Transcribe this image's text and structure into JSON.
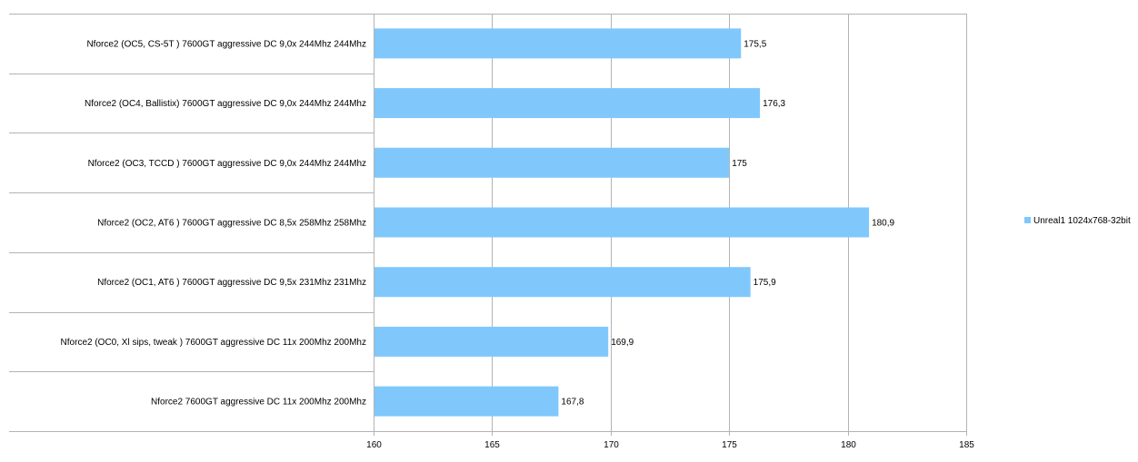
{
  "chart_data": {
    "type": "bar",
    "orientation": "horizontal",
    "categories": [
      "Nforce2 (OC5, CS-5T )  7600GT  aggressive  DC   9,0x  244Mhz  244Mhz",
      "Nforce2 (OC4, Ballistix)  7600GT  aggressive  DC   9,0x  244Mhz  244Mhz",
      "Nforce2 (OC3, TCCD )  7600GT  aggressive  DC   9,0x  244Mhz  244Mhz",
      "Nforce2 (OC2,  AT6 )  7600GT  aggressive  DC   8,5x  258Mhz  258Mhz",
      "Nforce2 (OC1,  AT6 )  7600GT  aggressive  DC   9,5x  231Mhz  231Mhz",
      "Nforce2 (OC0, Xl sips, tweak )  7600GT  aggressive  DC    11x  200Mhz  200Mhz",
      "Nforce2  7600GT  aggressive  DC    11x  200Mhz  200Mhz"
    ],
    "series": [
      {
        "name": "Unreal1 1024x768-32bit",
        "values": [
          175.5,
          176.3,
          175,
          180.9,
          175.9,
          169.9,
          167.8
        ],
        "data_labels": [
          "175,5",
          "176,3",
          "175",
          "180,9",
          "175,9",
          "169,9",
          "167,8"
        ],
        "color": "#80c8fc"
      }
    ],
    "xlim": [
      160,
      185
    ],
    "xticks": [
      160,
      165,
      170,
      175,
      180,
      185
    ],
    "grid": true,
    "legend_position": "right",
    "title": "",
    "xlabel": "",
    "ylabel": ""
  }
}
